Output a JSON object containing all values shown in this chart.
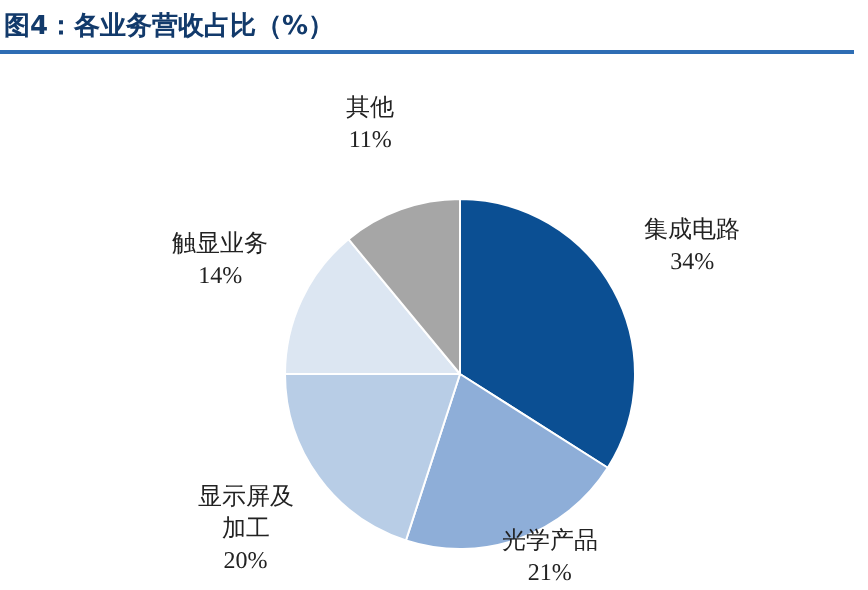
{
  "chart_data": {
    "type": "pie",
    "title": "图4：各业务营收占比（%）",
    "categories": [
      "集成电路",
      "光学产品",
      "显示屏及加工",
      "触显业务",
      "其他"
    ],
    "values": [
      34,
      21,
      20,
      14,
      11
    ],
    "value_labels": [
      "34%",
      "21%",
      "20%",
      "14%",
      "11%"
    ],
    "colors": [
      "#0b4f93",
      "#8eaed8",
      "#b8cde6",
      "#dce6f2",
      "#a6a6a6"
    ],
    "legend": false
  }
}
